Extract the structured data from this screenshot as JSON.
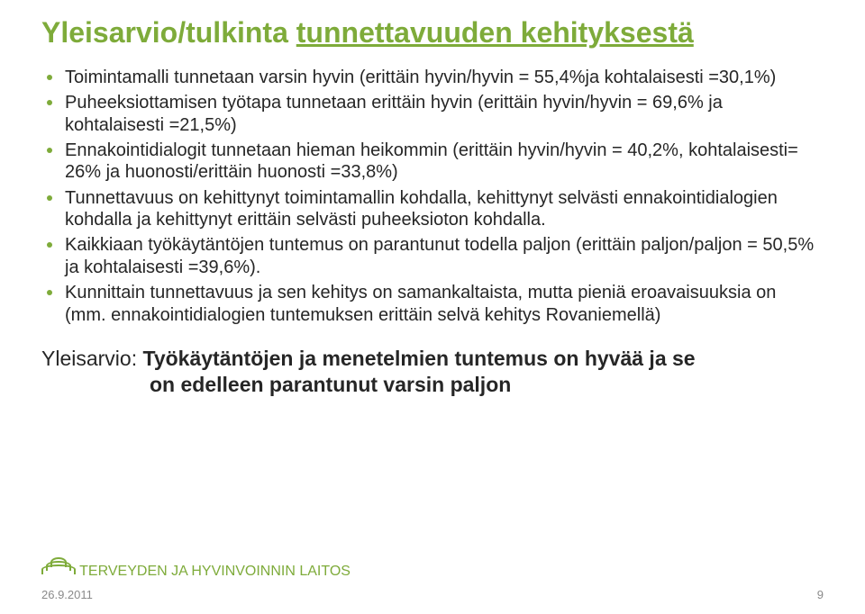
{
  "colors": {
    "titleColor": "#7eab3a",
    "bodyColor": "#262626",
    "bulletColor": "#7eab3a",
    "brandColor": "#7eab3a",
    "pageNumColor": "#8a8a8a",
    "dateColor": "#8a8a8a"
  },
  "title": {
    "plain": "Yleisarvio/tulkinta ",
    "underlined": "tunnettavuuden kehityksestä"
  },
  "bullets": [
    "Toimintamalli tunnetaan varsin hyvin (erittäin hyvin/hyvin = 55,4%ja kohtalaisesti =30,1%)",
    "Puheeksiottamisen työtapa tunnetaan erittäin hyvin (erittäin hyvin/hyvin = 69,6% ja kohtalaisesti =21,5%)",
    "Ennakointidialogit tunnetaan hieman heikommin (erittäin hyvin/hyvin = 40,2%, kohtalaisesti= 26% ja huonosti/erittäin huonosti =33,8%)",
    "Tunnettavuus on kehittynyt toimintamallin kohdalla, kehittynyt selvästi ennakointidialogien kohdalla ja kehittynyt erittäin selvästi puheeksioton kohdalla.",
    "Kaikkiaan työkäytäntöjen tuntemus on parantunut todella paljon (erittäin paljon/paljon = 50,5% ja kohtalaisesti =39,6%).",
    "Kunnittain tunnettavuus ja sen kehitys on samankaltaista, mutta pieniä eroavaisuuksia on (mm. ennakointidialogien tuntemuksen  erittäin selvä kehitys Rovaniemellä)"
  ],
  "summary": {
    "label": "Yleisarvio: ",
    "line1": "Työkäytäntöjen ja menetelmien tuntemus on hyvää ja se",
    "line2": "on edelleen parantunut varsin paljon"
  },
  "brand": "TERVEYDEN JA HYVINVOINNIN LAITOS",
  "date": "26.9.2011",
  "page": "9"
}
